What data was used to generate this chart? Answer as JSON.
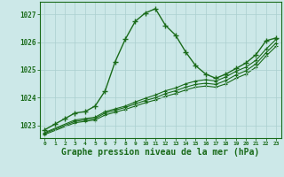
{
  "bg_color": "#cce8e8",
  "grid_color": "#aacfcf",
  "line_color": "#1a6b1a",
  "xlabel": "Graphe pression niveau de la mer (hPa)",
  "xlim": [
    -0.5,
    23.5
  ],
  "ylim": [
    1022.55,
    1027.45
  ],
  "yticks": [
    1023,
    1024,
    1025,
    1026,
    1027
  ],
  "xticks": [
    0,
    1,
    2,
    3,
    4,
    5,
    6,
    7,
    8,
    9,
    10,
    11,
    12,
    13,
    14,
    15,
    16,
    17,
    18,
    19,
    20,
    21,
    22,
    23
  ],
  "series": [
    {
      "x": [
        0,
        1,
        2,
        3,
        4,
        5,
        6,
        7,
        8,
        9,
        10,
        11,
        12,
        13,
        14,
        15,
        16,
        17,
        18,
        19,
        20,
        21,
        22,
        23
      ],
      "y": [
        1022.85,
        1023.05,
        1023.25,
        1023.45,
        1023.5,
        1023.7,
        1024.25,
        1025.3,
        1026.1,
        1026.75,
        1027.05,
        1027.2,
        1026.6,
        1026.25,
        1025.65,
        1025.15,
        1024.85,
        1024.7,
        1024.85,
        1025.05,
        1025.25,
        1025.55,
        1026.05,
        1026.15
      ],
      "lw": 1.0,
      "ms": 4.0,
      "mew": 1.0
    },
    {
      "x": [
        0,
        3,
        4,
        5,
        6,
        7,
        8,
        9,
        10,
        11,
        12,
        13,
        14,
        15,
        16,
        17,
        18,
        19,
        20,
        21,
        22,
        23
      ],
      "y": [
        1022.75,
        1023.2,
        1023.25,
        1023.3,
        1023.5,
        1023.6,
        1023.7,
        1023.85,
        1023.98,
        1024.1,
        1024.25,
        1024.35,
        1024.5,
        1024.6,
        1024.65,
        1024.6,
        1024.75,
        1024.95,
        1025.1,
        1025.35,
        1025.75,
        1026.1
      ],
      "lw": 0.8,
      "ms": 3.0,
      "mew": 0.8
    },
    {
      "x": [
        0,
        3,
        4,
        5,
        6,
        7,
        8,
        9,
        10,
        11,
        12,
        13,
        14,
        15,
        16,
        17,
        18,
        19,
        20,
        21,
        22,
        23
      ],
      "y": [
        1022.72,
        1023.15,
        1023.2,
        1023.25,
        1023.45,
        1023.55,
        1023.65,
        1023.78,
        1023.9,
        1024.0,
        1024.15,
        1024.25,
        1024.38,
        1024.48,
        1024.52,
        1024.48,
        1024.62,
        1024.82,
        1024.97,
        1025.22,
        1025.62,
        1025.97
      ],
      "lw": 0.8,
      "ms": 3.0,
      "mew": 0.8
    },
    {
      "x": [
        0,
        3,
        4,
        5,
        6,
        7,
        8,
        9,
        10,
        11,
        12,
        13,
        14,
        15,
        16,
        17,
        18,
        19,
        20,
        21,
        22,
        23
      ],
      "y": [
        1022.68,
        1023.1,
        1023.15,
        1023.2,
        1023.38,
        1023.48,
        1023.58,
        1023.7,
        1023.82,
        1023.92,
        1024.05,
        1024.15,
        1024.28,
        1024.38,
        1024.42,
        1024.38,
        1024.5,
        1024.7,
        1024.85,
        1025.1,
        1025.5,
        1025.85
      ],
      "lw": 0.8,
      "ms": 3.0,
      "mew": 0.8
    }
  ]
}
